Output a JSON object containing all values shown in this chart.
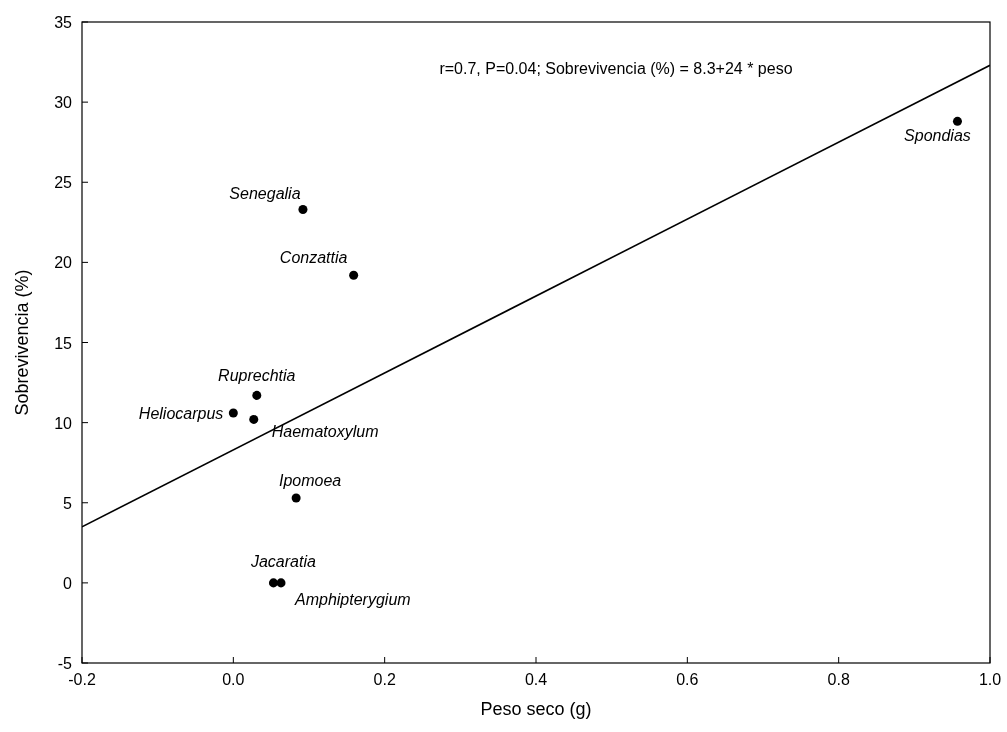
{
  "chart_data": {
    "type": "scatter",
    "xlabel": "Peso seco (g)",
    "ylabel": "Sobrevivencia (%)",
    "xlim": [
      -0.2,
      1.0
    ],
    "ylim": [
      -5,
      35
    ],
    "xticks": [
      -0.2,
      {
        "value": 0,
        "label": "0.0"
      },
      0.2,
      0.4,
      0.6,
      0.8,
      {
        "value": 1,
        "label": "1.0"
      }
    ],
    "yticks": [
      -5,
      0,
      5,
      10,
      15,
      20,
      25,
      30,
      35
    ],
    "grid": false,
    "series": [
      {
        "color": "#000000",
        "marker": "circle",
        "x": [
          0.957,
          0.092,
          0.159,
          0.031,
          0.0,
          0.027,
          0.083,
          0.053,
          0.063
        ],
        "values": [
          28.8,
          23.3,
          19.2,
          11.7,
          10.6,
          10.2,
          5.3,
          0,
          0
        ]
      },
      {
        "type": "line",
        "color": "#000000",
        "line_style": "solid",
        "x": [
          -0.2,
          1.0
        ],
        "values": [
          3.5,
          32.3
        ]
      }
    ],
    "annotations": [
      "r=0.7, P=0.04; Sobrevivencia (%) = 8.3+24 * peso",
      {
        "text": "Spondias",
        "x": 0.957,
        "y": 28.8
      },
      {
        "text": "Senegalia",
        "x": 0.092,
        "y": 23.3
      },
      {
        "text": "Conzattia",
        "x": 0.159,
        "y": 19.2
      },
      {
        "text": "Ruprechtia",
        "x": 0.031,
        "y": 11.7
      },
      {
        "text": "Heliocarpus",
        "x": 0.0,
        "y": 10.6
      },
      {
        "text": "Haematoxylum",
        "x": 0.027,
        "y": 10.2
      },
      {
        "text": "Ipomoea",
        "x": 0.083,
        "y": 5.3
      },
      {
        "text": "Jacaratia",
        "x": 0.053,
        "y": 0
      },
      {
        "text": "Amphipterygium",
        "x": 0.063,
        "y": 0
      }
    ]
  }
}
